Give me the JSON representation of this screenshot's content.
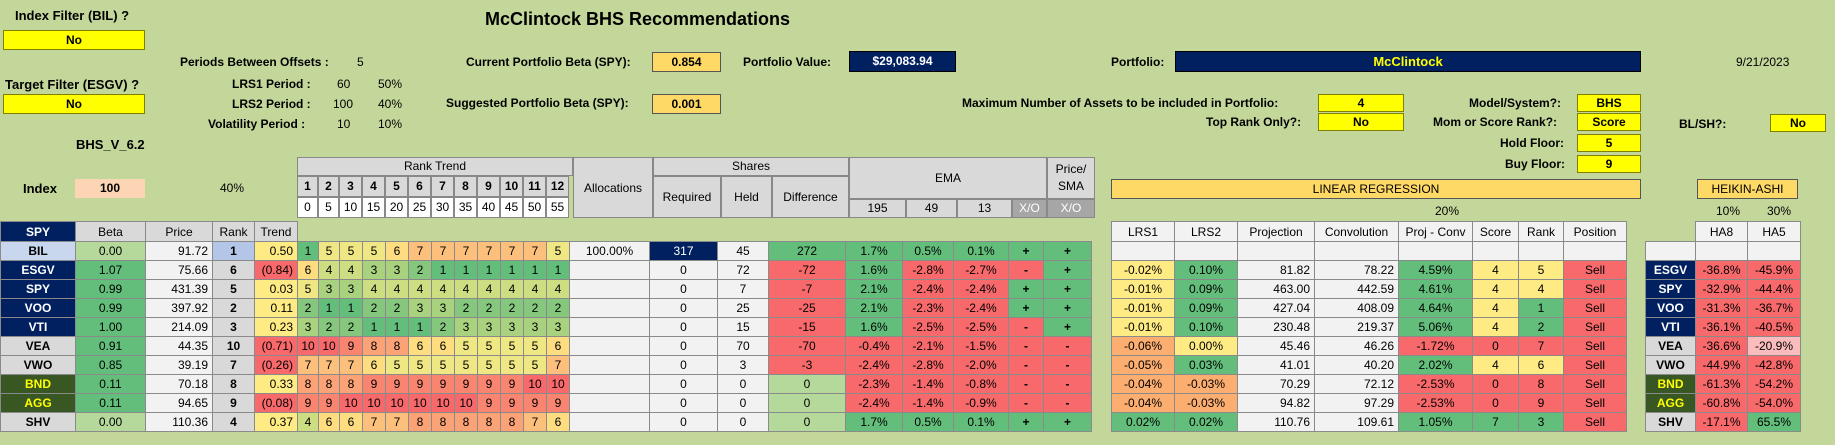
{
  "title": "McClintock BHS Recommendations",
  "index_filter": {
    "label": "Index Filter (BIL) ?",
    "value": "No"
  },
  "target_filter": {
    "label": "Target Filter (ESGV) ?",
    "value": "No"
  },
  "version": "BHS_V_6.2",
  "periods": {
    "offsets_label": "Periods Between Offsets :",
    "offsets_value": "5",
    "lrs1_label": "LRS1 Period :",
    "lrs1_value": "60",
    "lrs1_pct": "50%",
    "lrs2_label": "LRS2 Period :",
    "lrs2_value": "100",
    "lrs2_pct": "40%",
    "vol_label": "Volatility Period :",
    "vol_value": "10",
    "vol_pct": "10%"
  },
  "beta": {
    "current_label": "Current Portfolio Beta (SPY):",
    "current_value": "0.854",
    "suggested_label": "Suggested Portfolio Beta (SPY):",
    "suggested_value": "0.001"
  },
  "portfolio_value": {
    "label": "Portfolio Value:",
    "value": "$29,083.94"
  },
  "portfolio": {
    "label": "Portfolio:",
    "value": "McClintock"
  },
  "date": "9/21/2023",
  "settings": {
    "max_assets_label": "Maximum Number of Assets to be included in Portfolio:",
    "max_assets_value": "4",
    "top_rank_label": "Top Rank Only?:",
    "top_rank_value": "No",
    "model_label": "Model/System?:",
    "model_value": "BHS",
    "mom_label": "Mom or Score Rank?:",
    "mom_value": "Score",
    "hold_label": "Hold Floor:",
    "hold_value": "5",
    "buy_label": "Buy Floor:",
    "buy_value": "9",
    "blsh_label": "BL/SH?:",
    "blsh_value": "No"
  },
  "headers": {
    "index": "Index",
    "index_val": "100",
    "pct40": "40%",
    "rank_trend": "Rank Trend",
    "allocations": "Allocations",
    "shares": "Shares",
    "ema": "EMA",
    "price_sma": "Price/ SMA",
    "linreg": "LINEAR REGRESSION",
    "linreg_pct": "20%",
    "heikin": "HEIKIN-ASHI",
    "ha_pct1": "10%",
    "ha_pct2": "30%",
    "rt_nums": [
      "1",
      "2",
      "3",
      "4",
      "5",
      "6",
      "7",
      "8",
      "9",
      "10",
      "11",
      "12"
    ],
    "rt_offsets": [
      "0",
      "5",
      "10",
      "15",
      "20",
      "25",
      "30",
      "35",
      "40",
      "45",
      "50",
      "55"
    ],
    "sub": {
      "ticker": "SPY",
      "beta": "Beta",
      "price": "Price",
      "rank": "Rank",
      "trend": "Trend",
      "required": "Required",
      "held": "Held",
      "difference": "Difference",
      "e195": "195",
      "e49": "49",
      "e13": "13",
      "xo": "X/O",
      "xo2": "X/O",
      "lrs1": "LRS1",
      "lrs2": "LRS2",
      "projection": "Projection",
      "convolution": "Convolution",
      "projconv": "Proj - Conv",
      "score": "Score",
      "rank2": "Rank",
      "position": "Position",
      "ha8": "HA8",
      "ha5": "HA5"
    }
  },
  "rows": [
    {
      "ticker": "BIL",
      "beta": "0.00",
      "price": "91.72",
      "rank": "1",
      "trend": "0.50",
      "rt": [
        "1",
        "5",
        "5",
        "5",
        "6",
        "7",
        "7",
        "7",
        "7",
        "7",
        "7",
        "5"
      ],
      "alloc": "100.00%",
      "req": "317",
      "held": "45",
      "diff": "272",
      "e195": "1.7%",
      "e49": "0.5%",
      "e13": "0.1%",
      "xo": "+",
      "xo2": "+",
      "lrs1": "",
      "lrs2": "",
      "proj": "",
      "conv": "",
      "pc": "",
      "score": "",
      "rank2": "",
      "pos": "",
      "ha_ticker": "",
      "ha8": "",
      "ha5": ""
    },
    {
      "ticker": "ESGV",
      "beta": "1.07",
      "price": "75.66",
      "rank": "6",
      "trend": "(0.84)",
      "rt": [
        "6",
        "4",
        "4",
        "3",
        "3",
        "2",
        "1",
        "1",
        "1",
        "1",
        "1",
        "1"
      ],
      "alloc": "",
      "req": "0",
      "held": "72",
      "diff": "-72",
      "e195": "1.6%",
      "e49": "-2.8%",
      "e13": "-2.7%",
      "xo": "-",
      "xo2": "+",
      "lrs1": "-0.02%",
      "lrs2": "0.10%",
      "proj": "81.82",
      "conv": "78.22",
      "pc": "4.59%",
      "score": "4",
      "rank2": "5",
      "pos": "Sell",
      "ha_ticker": "ESGV",
      "ha8": "-36.8%",
      "ha5": "-45.9%"
    },
    {
      "ticker": "SPY",
      "beta": "0.99",
      "price": "431.39",
      "rank": "5",
      "trend": "0.03",
      "rt": [
        "5",
        "3",
        "3",
        "4",
        "4",
        "4",
        "4",
        "4",
        "4",
        "4",
        "4",
        "4"
      ],
      "alloc": "",
      "req": "0",
      "held": "7",
      "diff": "-7",
      "e195": "2.1%",
      "e49": "-2.4%",
      "e13": "-2.4%",
      "xo": "+",
      "xo2": "+",
      "lrs1": "-0.01%",
      "lrs2": "0.09%",
      "proj": "463.00",
      "conv": "442.59",
      "pc": "4.61%",
      "score": "4",
      "rank2": "4",
      "pos": "Sell",
      "ha_ticker": "SPY",
      "ha8": "-32.9%",
      "ha5": "-44.4%"
    },
    {
      "ticker": "VOO",
      "beta": "0.99",
      "price": "397.92",
      "rank": "2",
      "trend": "0.11",
      "rt": [
        "2",
        "1",
        "1",
        "2",
        "2",
        "3",
        "3",
        "2",
        "2",
        "2",
        "2",
        "2"
      ],
      "alloc": "",
      "req": "0",
      "held": "25",
      "diff": "-25",
      "e195": "2.1%",
      "e49": "-2.3%",
      "e13": "-2.4%",
      "xo": "+",
      "xo2": "+",
      "lrs1": "-0.01%",
      "lrs2": "0.09%",
      "proj": "427.04",
      "conv": "408.09",
      "pc": "4.64%",
      "score": "4",
      "rank2": "1",
      "pos": "Sell",
      "ha_ticker": "VOO",
      "ha8": "-31.3%",
      "ha5": "-36.7%"
    },
    {
      "ticker": "VTI",
      "beta": "1.00",
      "price": "214.09",
      "rank": "3",
      "trend": "0.23",
      "rt": [
        "3",
        "2",
        "2",
        "1",
        "1",
        "1",
        "2",
        "3",
        "3",
        "3",
        "3",
        "3"
      ],
      "alloc": "",
      "req": "0",
      "held": "15",
      "diff": "-15",
      "e195": "1.6%",
      "e49": "-2.5%",
      "e13": "-2.5%",
      "xo": "-",
      "xo2": "+",
      "lrs1": "-0.01%",
      "lrs2": "0.10%",
      "proj": "230.48",
      "conv": "219.37",
      "pc": "5.06%",
      "score": "4",
      "rank2": "2",
      "pos": "Sell",
      "ha_ticker": "VTI",
      "ha8": "-36.1%",
      "ha5": "-40.5%"
    },
    {
      "ticker": "VEA",
      "beta": "0.91",
      "price": "44.35",
      "rank": "10",
      "trend": "(0.71)",
      "rt": [
        "10",
        "10",
        "9",
        "8",
        "8",
        "6",
        "6",
        "5",
        "5",
        "5",
        "5",
        "6"
      ],
      "alloc": "",
      "req": "0",
      "held": "70",
      "diff": "-70",
      "e195": "-0.4%",
      "e49": "-2.1%",
      "e13": "-1.5%",
      "xo": "-",
      "xo2": "-",
      "lrs1": "-0.06%",
      "lrs2": "0.00%",
      "proj": "45.46",
      "conv": "46.26",
      "pc": "-1.72%",
      "score": "0",
      "rank2": "7",
      "pos": "Sell",
      "ha_ticker": "VEA",
      "ha8": "-36.6%",
      "ha5": "-20.9%"
    },
    {
      "ticker": "VWO",
      "beta": "0.85",
      "price": "39.19",
      "rank": "7",
      "trend": "(0.26)",
      "rt": [
        "7",
        "7",
        "7",
        "6",
        "5",
        "5",
        "5",
        "5",
        "5",
        "5",
        "5",
        "7"
      ],
      "alloc": "",
      "req": "0",
      "held": "3",
      "diff": "-3",
      "e195": "-2.4%",
      "e49": "-2.8%",
      "e13": "-2.0%",
      "xo": "-",
      "xo2": "-",
      "lrs1": "-0.05%",
      "lrs2": "0.03%",
      "proj": "41.01",
      "conv": "40.20",
      "pc": "2.02%",
      "score": "4",
      "rank2": "6",
      "pos": "Sell",
      "ha_ticker": "VWO",
      "ha8": "-44.9%",
      "ha5": "-42.8%"
    },
    {
      "ticker": "BND",
      "beta": "0.11",
      "price": "70.18",
      "rank": "8",
      "trend": "0.33",
      "rt": [
        "8",
        "8",
        "8",
        "9",
        "9",
        "9",
        "9",
        "9",
        "9",
        "9",
        "10",
        "10"
      ],
      "alloc": "",
      "req": "0",
      "held": "0",
      "diff": "0",
      "e195": "-2.3%",
      "e49": "-1.4%",
      "e13": "-0.8%",
      "xo": "-",
      "xo2": "-",
      "lrs1": "-0.04%",
      "lrs2": "-0.03%",
      "proj": "70.29",
      "conv": "72.12",
      "pc": "-2.53%",
      "score": "0",
      "rank2": "8",
      "pos": "Sell",
      "ha_ticker": "BND",
      "ha8": "-61.3%",
      "ha5": "-54.2%"
    },
    {
      "ticker": "AGG",
      "beta": "0.11",
      "price": "94.65",
      "rank": "9",
      "trend": "(0.08)",
      "rt": [
        "9",
        "9",
        "10",
        "10",
        "10",
        "10",
        "10",
        "10",
        "9",
        "9",
        "9",
        "9"
      ],
      "alloc": "",
      "req": "0",
      "held": "0",
      "diff": "0",
      "e195": "-2.4%",
      "e49": "-1.4%",
      "e13": "-0.9%",
      "xo": "-",
      "xo2": "-",
      "lrs1": "-0.04%",
      "lrs2": "-0.03%",
      "proj": "94.82",
      "conv": "97.29",
      "pc": "-2.53%",
      "score": "0",
      "rank2": "9",
      "pos": "Sell",
      "ha_ticker": "AGG",
      "ha8": "-60.8%",
      "ha5": "-54.0%"
    },
    {
      "ticker": "SHV",
      "beta": "0.00",
      "price": "110.36",
      "rank": "4",
      "trend": "0.37",
      "rt": [
        "4",
        "6",
        "6",
        "7",
        "7",
        "8",
        "8",
        "8",
        "8",
        "8",
        "7",
        "6"
      ],
      "alloc": "",
      "req": "0",
      "held": "0",
      "diff": "0",
      "e195": "1.7%",
      "e49": "0.5%",
      "e13": "0.1%",
      "xo": "+",
      "xo2": "+",
      "lrs1": "0.02%",
      "lrs2": "0.02%",
      "proj": "110.76",
      "conv": "109.61",
      "pc": "1.05%",
      "score": "7",
      "rank2": "3",
      "pos": "Sell",
      "ha_ticker": "SHV",
      "ha8": "-17.1%",
      "ha5": "65.5%"
    }
  ],
  "colors": {
    "navy": "#002060",
    "yellow": "#ffff00",
    "green": "#63be7b",
    "red": "#f8696b",
    "sheet_bg": "#c4d79b"
  }
}
